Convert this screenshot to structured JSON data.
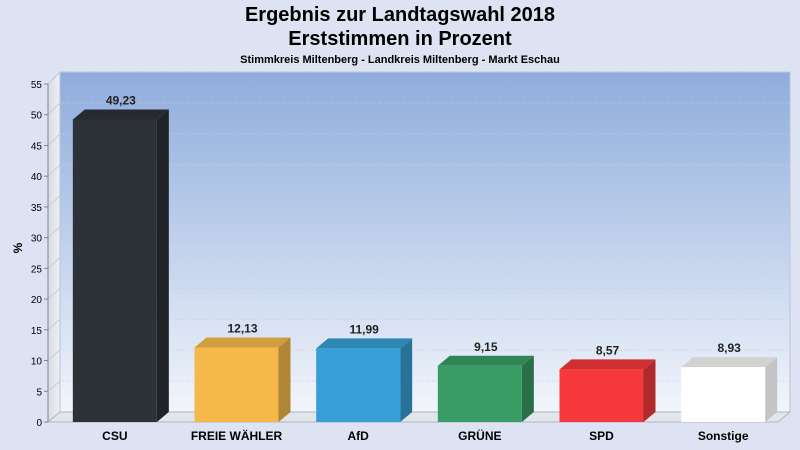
{
  "header": {
    "title_line1": "Ergebnis zur Landtagswahl 2018",
    "title_line2": "Erststimmen in Prozent",
    "subtitle": "Stimmkreis Miltenberg - Landkreis Miltenberg - Markt Eschau"
  },
  "chart_data": {
    "type": "bar",
    "title": "Ergebnis zur Landtagswahl 2018 Erststimmen in Prozent",
    "subtitle": "Stimmkreis Miltenberg - Landkreis Miltenberg - Markt Eschau",
    "xlabel": "",
    "ylabel": "%",
    "ylim": [
      0,
      55
    ],
    "yticks": [
      0,
      5,
      10,
      15,
      20,
      25,
      30,
      35,
      40,
      45,
      50,
      55
    ],
    "grid": true,
    "categories": [
      "CSU",
      "FREIE WÄHLER",
      "AfD",
      "GRÜNE",
      "SPD",
      "Sonstige"
    ],
    "values": [
      49.23,
      12.13,
      11.99,
      9.15,
      8.57,
      8.93
    ],
    "value_labels": [
      "49,23",
      "12,13",
      "11,99",
      "9,15",
      "8,57",
      "8,93"
    ],
    "colors": [
      "#2d3138",
      "#f5b94a",
      "#379fd6",
      "#389c64",
      "#f5393c",
      "#ffffff"
    ]
  }
}
